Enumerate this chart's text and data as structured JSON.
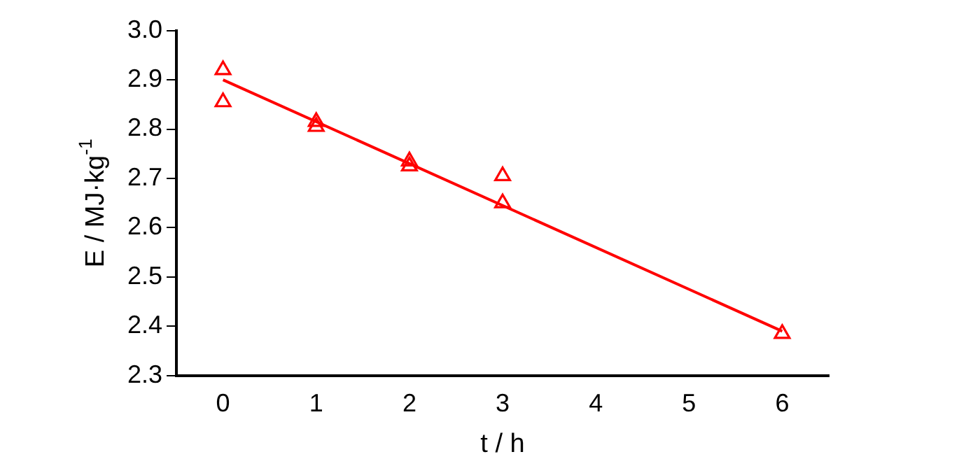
{
  "chart_data": {
    "type": "scatter",
    "xlabel": "t / h",
    "ylabel": "E / MJ·kg$^{-1}$",
    "series": [
      {
        "color": "#ff0000",
        "marker": "triangle",
        "x": [
          0,
          0,
          1,
          1,
          2,
          2,
          3,
          3,
          6
        ],
        "values": [
          2.92,
          2.855,
          2.815,
          2.805,
          2.735,
          2.725,
          2.705,
          2.65,
          2.385
        ]
      },
      {
        "type": "line",
        "color": "#ff0000",
        "marker": "none",
        "x": [
          0,
          6
        ],
        "values": [
          2.9,
          2.39
        ]
      }
    ],
    "xlim": [
      -0.5,
      6.5
    ],
    "xticks": [
      0,
      1,
      2,
      3,
      4,
      5,
      6
    ],
    "ylim": [
      2.3,
      3.0
    ],
    "yticks": [
      {
        "value": 2.3,
        "label": "2.3"
      },
      2.4,
      2.5,
      2.6,
      2.7,
      2.8,
      2.9,
      {
        "value": 3.0,
        "label": "3.0"
      }
    ],
    "grid": false,
    "legend": false
  }
}
